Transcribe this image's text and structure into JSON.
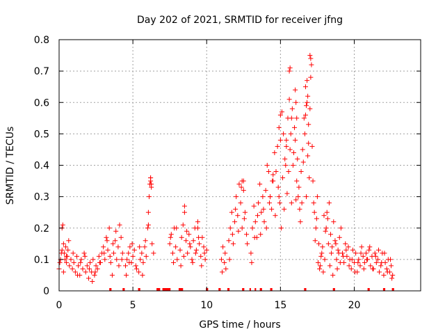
{
  "chart_data": {
    "type": "scatter",
    "title": "Day 202 of 2021, SRMTID for receiver jfng",
    "xlabel": "GPS time / hours",
    "ylabel": "SRMTID / TECUs",
    "xlim": [
      0,
      24.5
    ],
    "ylim": [
      0,
      0.8
    ],
    "x_ticks": [
      "0",
      "5",
      "10",
      "15",
      "20"
    ],
    "x_tick_values": [
      0,
      5,
      10,
      15,
      20
    ],
    "y_ticks": [
      "0",
      "0.1",
      "0.2",
      "0.3",
      "0.4",
      "0.5",
      "0.6",
      "0.7",
      "0.8"
    ],
    "y_tick_values": [
      0,
      0.1,
      0.2,
      0.3,
      0.4,
      0.5,
      0.6,
      0.7,
      0.8
    ],
    "grid": true,
    "marker": "+",
    "series_color": "#ff0000",
    "baseline_bars": [
      [
        3.4,
        3.55
      ],
      [
        4.3,
        4.45
      ],
      [
        5.35,
        5.5
      ],
      [
        6.6,
        6.85
      ],
      [
        7.0,
        7.55
      ],
      [
        8.1,
        8.4
      ],
      [
        9.95,
        10.1
      ],
      [
        10.8,
        10.95
      ],
      [
        11.4,
        11.55
      ],
      [
        12.4,
        12.55
      ],
      [
        12.9,
        13.0
      ],
      [
        13.25,
        13.35
      ],
      [
        13.6,
        13.75
      ],
      [
        14.3,
        14.45
      ],
      [
        16.6,
        16.75
      ],
      [
        18.55,
        18.7
      ],
      [
        20.9,
        21.05
      ],
      [
        21.95,
        22.1
      ],
      [
        22.55,
        22.7
      ]
    ],
    "series": [
      {
        "name": "SRMTID",
        "x": [
          0.0,
          0.1,
          0.15,
          0.2,
          0.25,
          0.3,
          0.35,
          0.4,
          0.45,
          0.5,
          0.55,
          0.6,
          0.7,
          0.8,
          0.9,
          1.0,
          1.1,
          1.2,
          1.3,
          1.4,
          1.5,
          1.6,
          1.7,
          1.8,
          1.9,
          2.0,
          2.1,
          2.2,
          2.3,
          2.4,
          2.5,
          2.6,
          2.7,
          2.8,
          2.9,
          3.0,
          3.1,
          3.2,
          3.3,
          3.4,
          3.5,
          3.6,
          3.7,
          3.8,
          3.9,
          4.0,
          4.1,
          4.2,
          4.3,
          4.5,
          4.6,
          4.7,
          4.8,
          4.9,
          5.0,
          5.1,
          5.2,
          5.4,
          5.5,
          5.6,
          5.7,
          5.8,
          5.9,
          6.0,
          6.05,
          6.1,
          6.15,
          6.2,
          6.25,
          6.3,
          6.4,
          7.5,
          7.6,
          7.7,
          7.8,
          7.9,
          8.0,
          8.2,
          8.3,
          8.4,
          8.5,
          8.6,
          8.7,
          8.8,
          8.9,
          9.0,
          9.1,
          9.2,
          9.3,
          9.4,
          9.5,
          9.6,
          9.7,
          9.8,
          9.9,
          10.0,
          11.0,
          11.1,
          11.2,
          11.3,
          11.5,
          11.6,
          11.7,
          11.8,
          11.9,
          12.0,
          12.1,
          12.2,
          12.3,
          12.4,
          12.5,
          12.6,
          12.7,
          13.0,
          13.1,
          13.2,
          13.3,
          13.4,
          13.5,
          13.6,
          13.7,
          13.8,
          13.9,
          14.0,
          14.1,
          14.2,
          14.3,
          14.4,
          14.5,
          14.6,
          14.7,
          14.8,
          14.9,
          15.0,
          15.1,
          15.2,
          15.3,
          15.4,
          15.5,
          15.6,
          15.7,
          15.8,
          15.9,
          16.0,
          16.1,
          16.2,
          16.3,
          16.4,
          16.5,
          16.6,
          16.7,
          16.8,
          16.9,
          17.0,
          17.05,
          17.1,
          17.2,
          17.3,
          17.4,
          17.5,
          17.6,
          17.7,
          17.8,
          17.9,
          18.0,
          18.1,
          18.2,
          18.3,
          18.4,
          18.5,
          18.6,
          18.7,
          18.8,
          18.9,
          19.0,
          19.1,
          19.2,
          19.3,
          19.4,
          19.5,
          19.6,
          19.7,
          19.8,
          19.9,
          20.0,
          20.1,
          20.2,
          20.3,
          20.4,
          20.5,
          20.6,
          20.7,
          20.8,
          20.9,
          21.0,
          21.1,
          21.2,
          21.3,
          21.4,
          21.5,
          21.6,
          21.7,
          21.8,
          21.9,
          22.0,
          22.1,
          22.2,
          22.3,
          22.4,
          22.5,
          22.6,
          0.05,
          0.2,
          0.3,
          0.5,
          0.65,
          0.95,
          1.25,
          1.45,
          1.75,
          2.05,
          2.25,
          2.45,
          2.75,
          3.05,
          3.25,
          3.45,
          3.65,
          3.85,
          4.05,
          4.25,
          4.55,
          4.75,
          4.95,
          5.25,
          5.45,
          5.65,
          5.85,
          6.05,
          6.2,
          7.55,
          7.75,
          7.95,
          8.25,
          8.45,
          8.65,
          8.85,
          9.05,
          9.25,
          9.45,
          9.65,
          9.85,
          11.05,
          11.25,
          11.55,
          11.75,
          11.95,
          12.15,
          12.35,
          12.55,
          12.75,
          13.05,
          13.25,
          13.45,
          13.65,
          13.85,
          14.05,
          14.25,
          14.45,
          14.65,
          14.85,
          14.95,
          15.05,
          15.15,
          15.25,
          15.35,
          15.45,
          15.55,
          15.65,
          15.75,
          15.85,
          15.95,
          16.05,
          16.15,
          16.25,
          16.35,
          16.45,
          16.55,
          16.65,
          16.75,
          16.85,
          16.95,
          17.15,
          17.25,
          17.35,
          17.45,
          17.55,
          17.65,
          17.75,
          17.85,
          17.95,
          18.05,
          18.15,
          18.25,
          18.35,
          18.45,
          18.55,
          18.75,
          18.85,
          18.95,
          19.05,
          19.25,
          19.45,
          19.65,
          19.85,
          20.05,
          20.25,
          20.45,
          20.65,
          20.85,
          21.05,
          21.25,
          21.45,
          21.65,
          21.85,
          22.05,
          22.25,
          22.45,
          22.55,
          15.6,
          15.65,
          16.0,
          16.05,
          16.1,
          16.7,
          16.75,
          16.8,
          16.85,
          16.9,
          17.0,
          17.05,
          15.0,
          14.9,
          14.5,
          14.3,
          12.4,
          12.5,
          6.2,
          6.25,
          8.5,
          9.4,
          15.4,
          15.75
        ],
        "y": [
          0.07,
          0.1,
          0.12,
          0.2,
          0.21,
          0.15,
          0.12,
          0.1,
          0.14,
          0.09,
          0.11,
          0.13,
          0.08,
          0.1,
          0.07,
          0.09,
          0.06,
          0.11,
          0.08,
          0.05,
          0.1,
          0.07,
          0.12,
          0.06,
          0.08,
          0.04,
          0.09,
          0.06,
          0.1,
          0.05,
          0.08,
          0.07,
          0.11,
          0.09,
          0.12,
          0.14,
          0.1,
          0.17,
          0.13,
          0.2,
          0.09,
          0.05,
          0.12,
          0.16,
          0.1,
          0.14,
          0.21,
          0.17,
          0.12,
          0.08,
          0.1,
          0.12,
          0.14,
          0.09,
          0.11,
          0.13,
          0.08,
          0.06,
          0.1,
          0.12,
          0.09,
          0.14,
          0.11,
          0.2,
          0.25,
          0.3,
          0.34,
          0.36,
          0.33,
          0.15,
          0.12,
          0.15,
          0.18,
          0.12,
          0.2,
          0.14,
          0.1,
          0.13,
          0.17,
          0.21,
          0.25,
          0.16,
          0.12,
          0.18,
          0.14,
          0.1,
          0.16,
          0.2,
          0.13,
          0.22,
          0.15,
          0.11,
          0.17,
          0.14,
          0.1,
          0.13,
          0.1,
          0.14,
          0.09,
          0.07,
          0.16,
          0.2,
          0.25,
          0.15,
          0.22,
          0.3,
          0.24,
          0.34,
          0.28,
          0.2,
          0.35,
          0.25,
          0.18,
          0.12,
          0.2,
          0.27,
          0.22,
          0.17,
          0.28,
          0.34,
          0.25,
          0.3,
          0.22,
          0.32,
          0.4,
          0.38,
          0.3,
          0.26,
          0.35,
          0.44,
          0.38,
          0.46,
          0.3,
          0.56,
          0.57,
          0.5,
          0.42,
          0.48,
          0.55,
          0.61,
          0.5,
          0.58,
          0.44,
          0.48,
          0.35,
          0.3,
          0.26,
          0.38,
          0.45,
          0.55,
          0.65,
          0.6,
          0.47,
          0.58,
          0.68,
          0.72,
          0.35,
          0.25,
          0.2,
          0.3,
          0.15,
          0.08,
          0.12,
          0.06,
          0.1,
          0.2,
          0.23,
          0.28,
          0.18,
          0.14,
          0.22,
          0.16,
          0.1,
          0.13,
          0.17,
          0.2,
          0.12,
          0.09,
          0.15,
          0.11,
          0.14,
          0.1,
          0.07,
          0.13,
          0.09,
          0.12,
          0.06,
          0.1,
          0.08,
          0.14,
          0.11,
          0.09,
          0.12,
          0.1,
          0.13,
          0.08,
          0.11,
          0.07,
          0.12,
          0.09,
          0.1,
          0.06,
          0.08,
          0.12,
          0.05,
          0.09,
          0.07,
          0.1,
          0.06,
          0.08,
          0.05,
          0.09,
          0.13,
          0.06,
          0.11,
          0.16,
          0.12,
          0.05,
          0.09,
          0.11,
          0.07,
          0.03,
          0.06,
          0.09,
          0.12,
          0.16,
          0.11,
          0.15,
          0.19,
          0.08,
          0.1,
          0.05,
          0.09,
          0.15,
          0.07,
          0.14,
          0.05,
          0.16,
          0.21,
          0.35,
          0.17,
          0.09,
          0.2,
          0.08,
          0.11,
          0.19,
          0.15,
          0.09,
          0.12,
          0.17,
          0.08,
          0.12,
          0.06,
          0.12,
          0.1,
          0.18,
          0.26,
          0.19,
          0.33,
          0.23,
          0.15,
          0.09,
          0.17,
          0.24,
          0.18,
          0.26,
          0.2,
          0.28,
          0.35,
          0.24,
          0.33,
          0.28,
          0.2,
          0.36,
          0.26,
          0.4,
          0.31,
          0.38,
          0.45,
          0.28,
          0.4,
          0.52,
          0.29,
          0.42,
          0.33,
          0.22,
          0.28,
          0.41,
          0.5,
          0.3,
          0.43,
          0.36,
          0.46,
          0.28,
          0.16,
          0.23,
          0.09,
          0.07,
          0.11,
          0.14,
          0.24,
          0.19,
          0.25,
          0.15,
          0.08,
          0.12,
          0.05,
          0.15,
          0.07,
          0.12,
          0.09,
          0.11,
          0.13,
          0.08,
          0.1,
          0.06,
          0.09,
          0.12,
          0.07,
          0.1,
          0.14,
          0.07,
          0.11,
          0.13,
          0.09,
          0.12,
          0.06,
          0.1,
          0.04,
          0.7,
          0.71,
          0.64,
          0.6,
          0.55,
          0.56,
          0.59,
          0.67,
          0.62,
          0.53,
          0.75,
          0.74,
          0.48,
          0.52,
          0.37,
          0.3,
          0.35,
          0.32,
          0.36,
          0.34,
          0.27,
          0.2,
          0.46,
          0.55
        ]
      }
    ]
  }
}
